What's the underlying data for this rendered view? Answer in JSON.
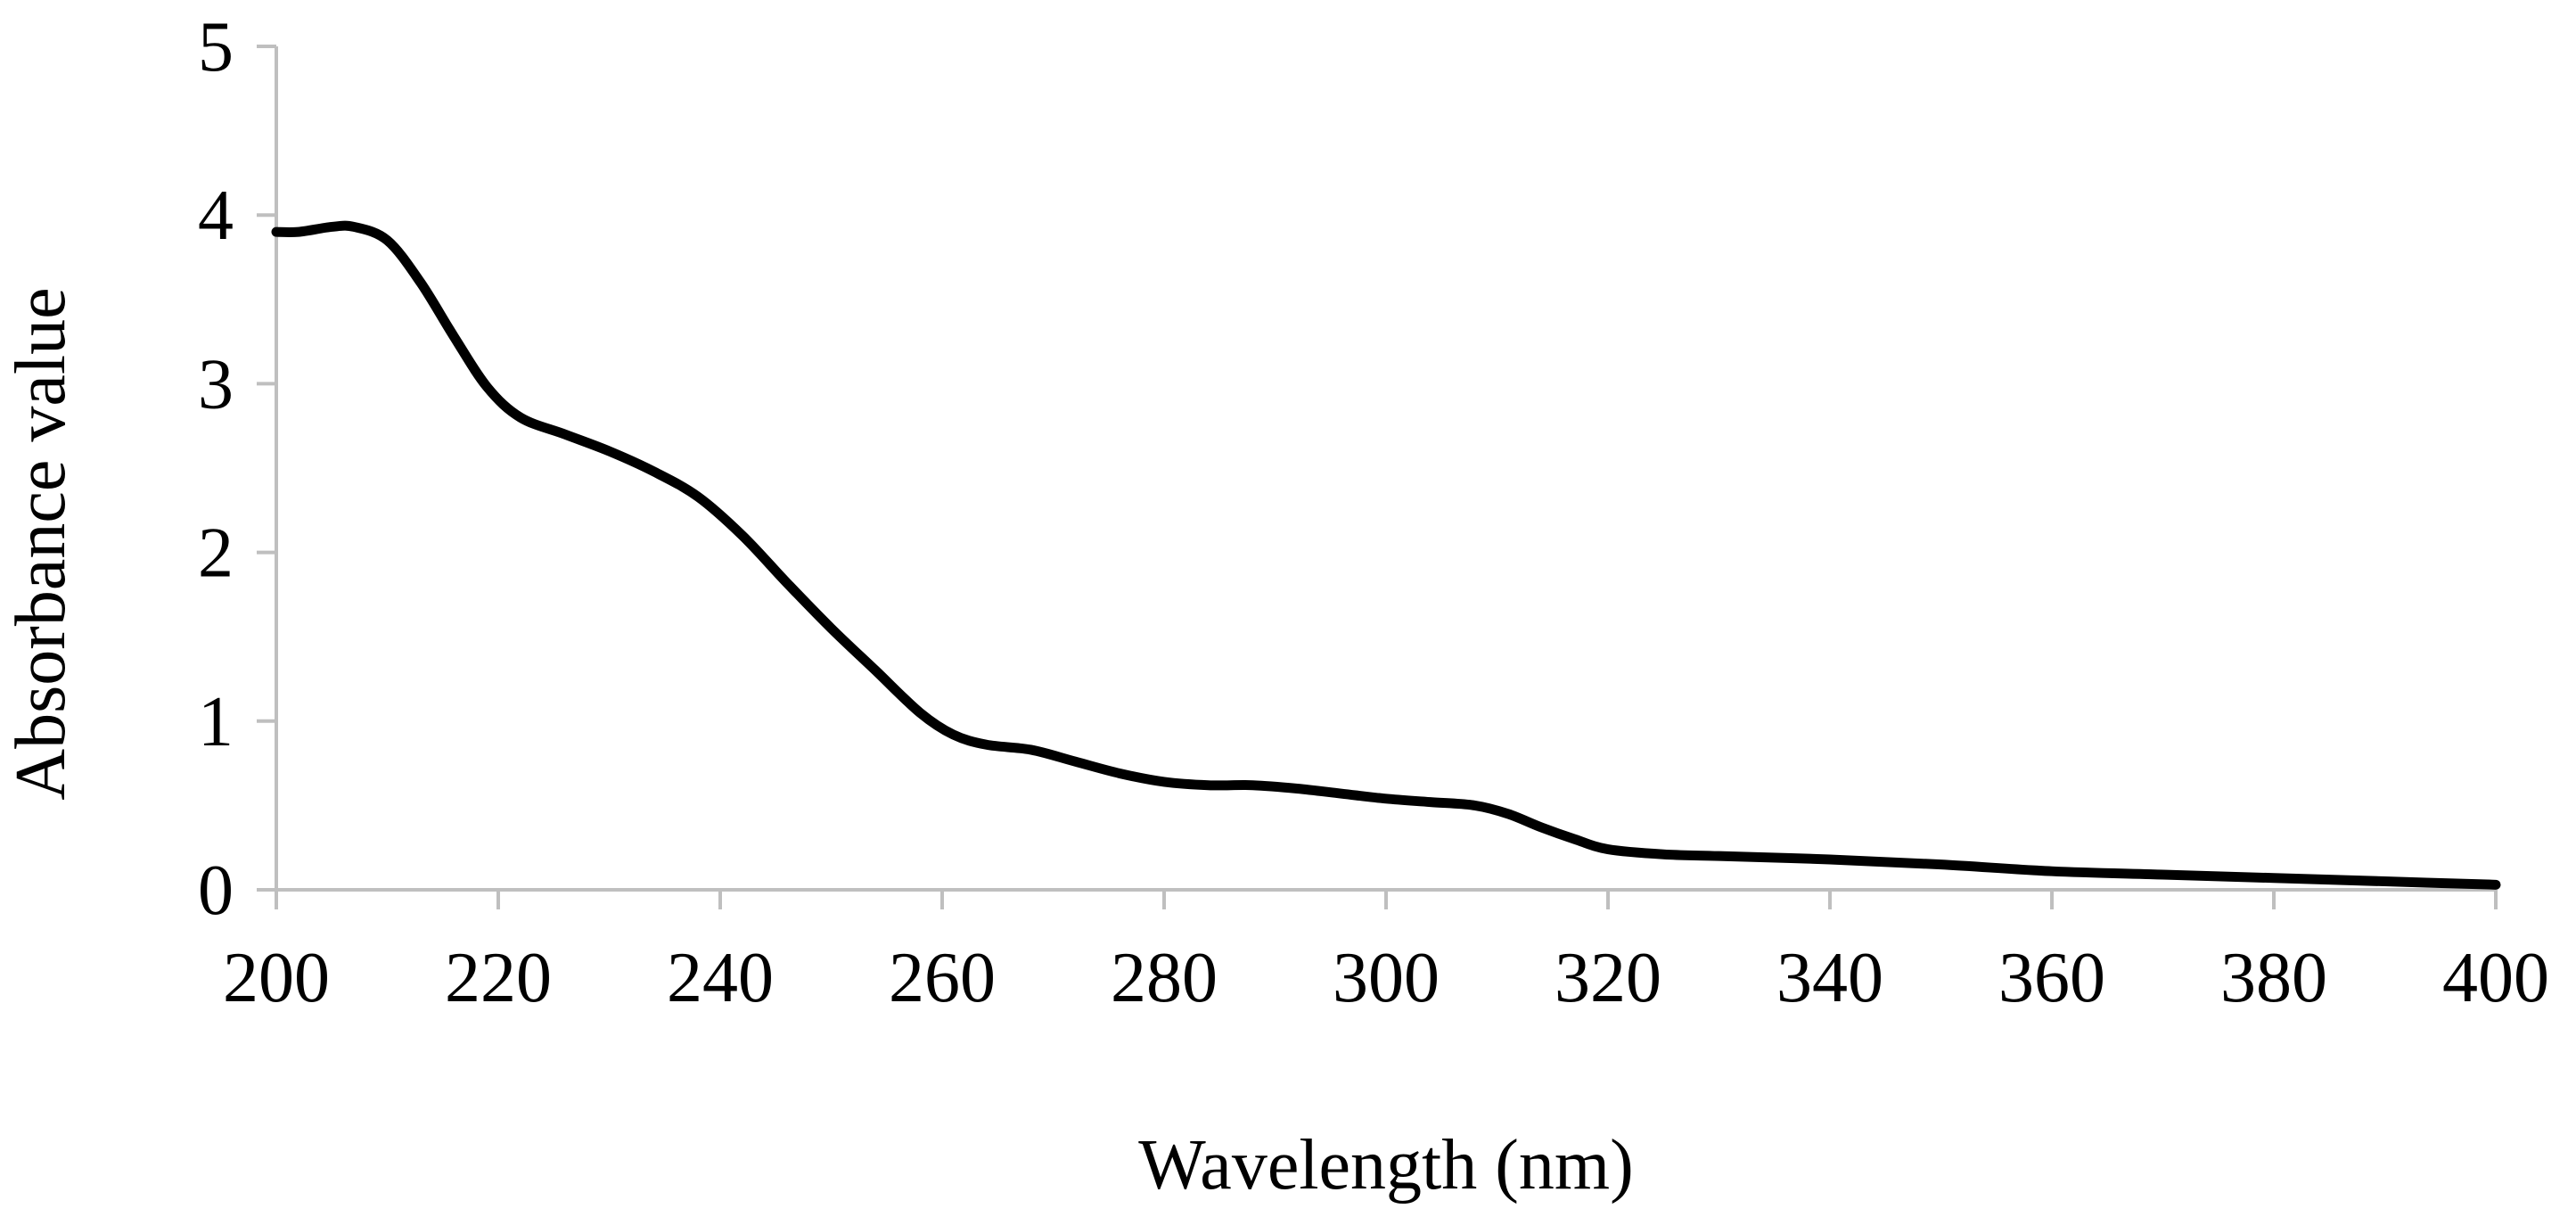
{
  "chart_data": {
    "type": "line",
    "title": "",
    "xlabel": "Wavelength (nm)",
    "ylabel": "Absorbance value",
    "xlim": [
      200,
      400
    ],
    "ylim": [
      0,
      5
    ],
    "xticks": [
      200,
      220,
      240,
      260,
      280,
      300,
      320,
      340,
      360,
      380,
      400
    ],
    "yticks": [
      0,
      1,
      2,
      3,
      4,
      5
    ],
    "grid": false,
    "legend": "none",
    "series": [
      {
        "name": "Absorbance",
        "color": "#000000",
        "x": [
          200,
          202,
          205,
          207,
          210,
          213,
          216,
          219,
          222,
          226,
          230,
          234,
          238,
          242,
          246,
          250,
          254,
          258,
          261,
          264,
          268,
          272,
          276,
          280,
          284,
          288,
          292,
          296,
          300,
          304,
          308,
          311,
          314,
          317,
          320,
          325,
          330,
          340,
          350,
          360,
          370,
          380,
          390,
          400
        ],
        "y": [
          3.9,
          3.9,
          3.93,
          3.93,
          3.85,
          3.6,
          3.28,
          2.98,
          2.8,
          2.7,
          2.6,
          2.48,
          2.33,
          2.1,
          1.82,
          1.55,
          1.3,
          1.05,
          0.92,
          0.86,
          0.83,
          0.76,
          0.69,
          0.64,
          0.62,
          0.62,
          0.6,
          0.57,
          0.54,
          0.52,
          0.5,
          0.45,
          0.37,
          0.3,
          0.24,
          0.21,
          0.2,
          0.18,
          0.15,
          0.11,
          0.09,
          0.07,
          0.05,
          0.03
        ]
      }
    ]
  }
}
